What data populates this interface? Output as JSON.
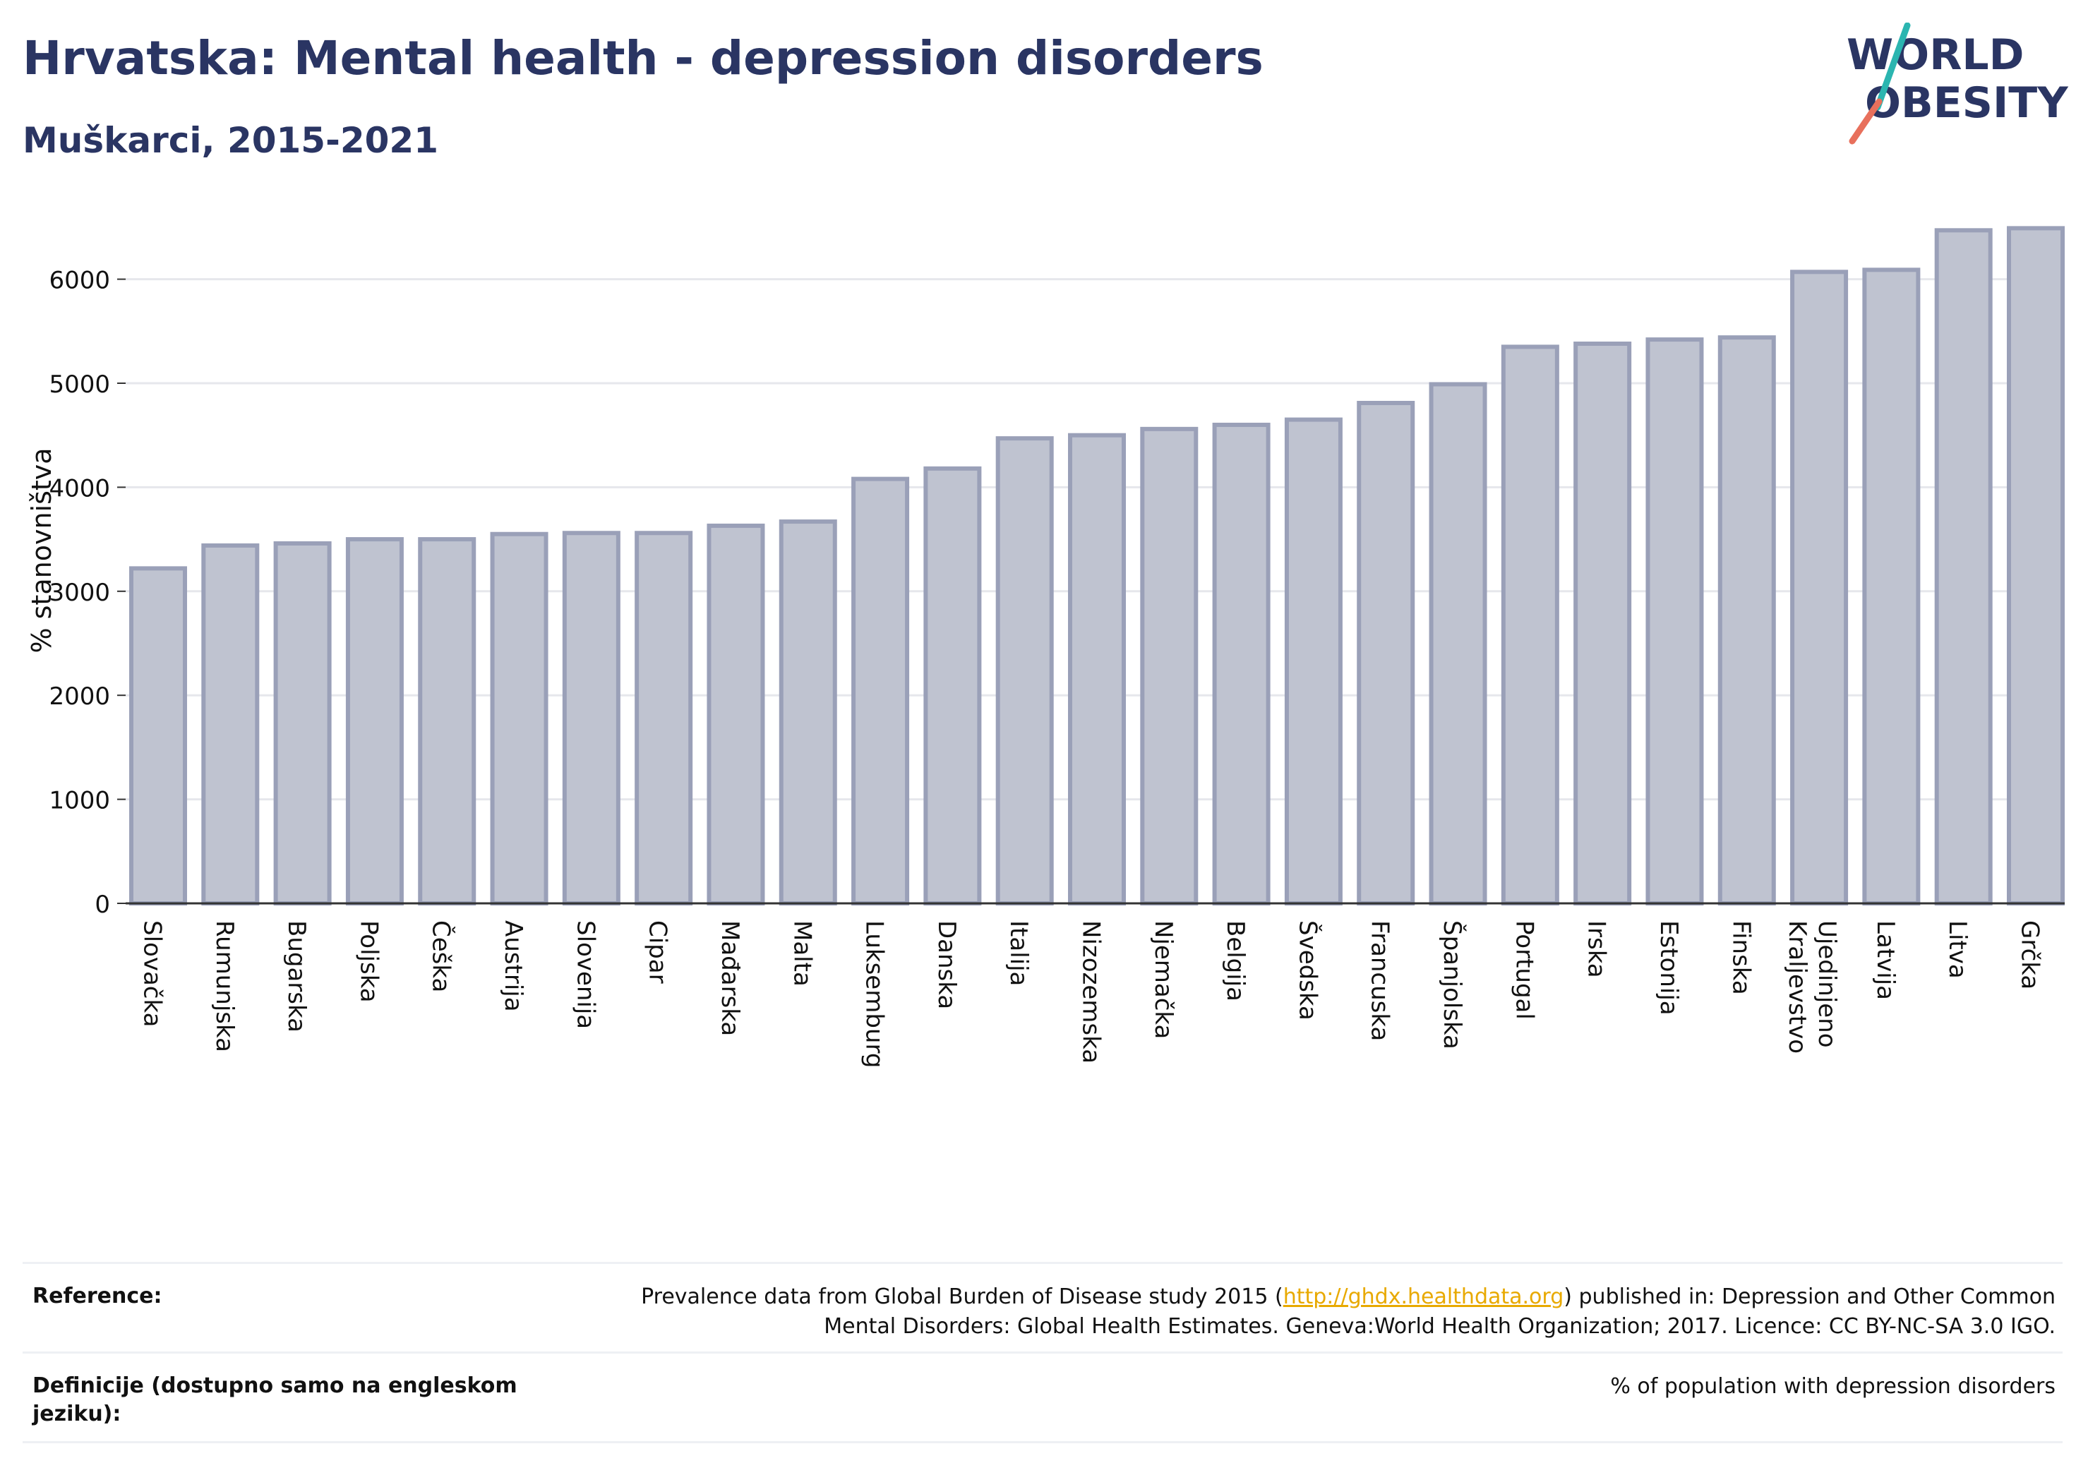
{
  "header": {
    "title": "Hrvatska: Mental health - depression disorders",
    "subtitle": "Muškarci, 2015-2021"
  },
  "logo": {
    "line1": "WORLD",
    "line2": "OBESITY",
    "colors": {
      "text": "#2a3563",
      "slash_teal": "#2bb5b0",
      "slash_coral": "#e8705c"
    }
  },
  "chart_data": {
    "type": "bar",
    "title": "",
    "xlabel": "",
    "ylabel": "% stanovništva",
    "ylim": [
      0,
      6700
    ],
    "yticks": [
      0,
      1000,
      2000,
      3000,
      4000,
      5000,
      6000
    ],
    "grid": true,
    "bar_color": "#bfc3d0",
    "bar_edge_color": "#9aa0b8",
    "categories": [
      "Slovačka",
      "Rumunjska",
      "Bugarska",
      "Poljska",
      "Češka",
      "Austrija",
      "Slovenija",
      "Cipar",
      "Mađarska",
      "Malta",
      "Luksemburg",
      "Danska",
      "Italija",
      "Nizozemska",
      "Njemačka",
      "Belgija",
      "Švedska",
      "Francuska",
      "Španjolska",
      "Portugal",
      "Irska",
      "Estonija",
      "Finska",
      "Ujedinjeno Kraljevstvo",
      "Latvija",
      "Litva",
      "Grčka"
    ],
    "values": [
      3220,
      3440,
      3460,
      3500,
      3500,
      3550,
      3560,
      3560,
      3630,
      3670,
      4080,
      4180,
      4470,
      4500,
      4560,
      4600,
      4650,
      4810,
      4990,
      5350,
      5380,
      5420,
      5440,
      6070,
      6090,
      6470,
      6490
    ]
  },
  "footer": {
    "reference_label": "Reference:",
    "reference_text_before": "Prevalence data from Global Burden of Disease study 2015 (",
    "reference_link": "http://ghdx.healthdata.org",
    "reference_text_after_line1": ") published in: Depression and Other Common",
    "reference_text_line2": "Mental Disorders: Global Health Estimates. Geneva:World Health Organization; 2017. Licence: CC BY-NC-SA 3.0 IGO.",
    "definition_label": "Definicije (dostupno samo na engleskom jeziku):",
    "definition_text": "% of population with depression disorders"
  }
}
